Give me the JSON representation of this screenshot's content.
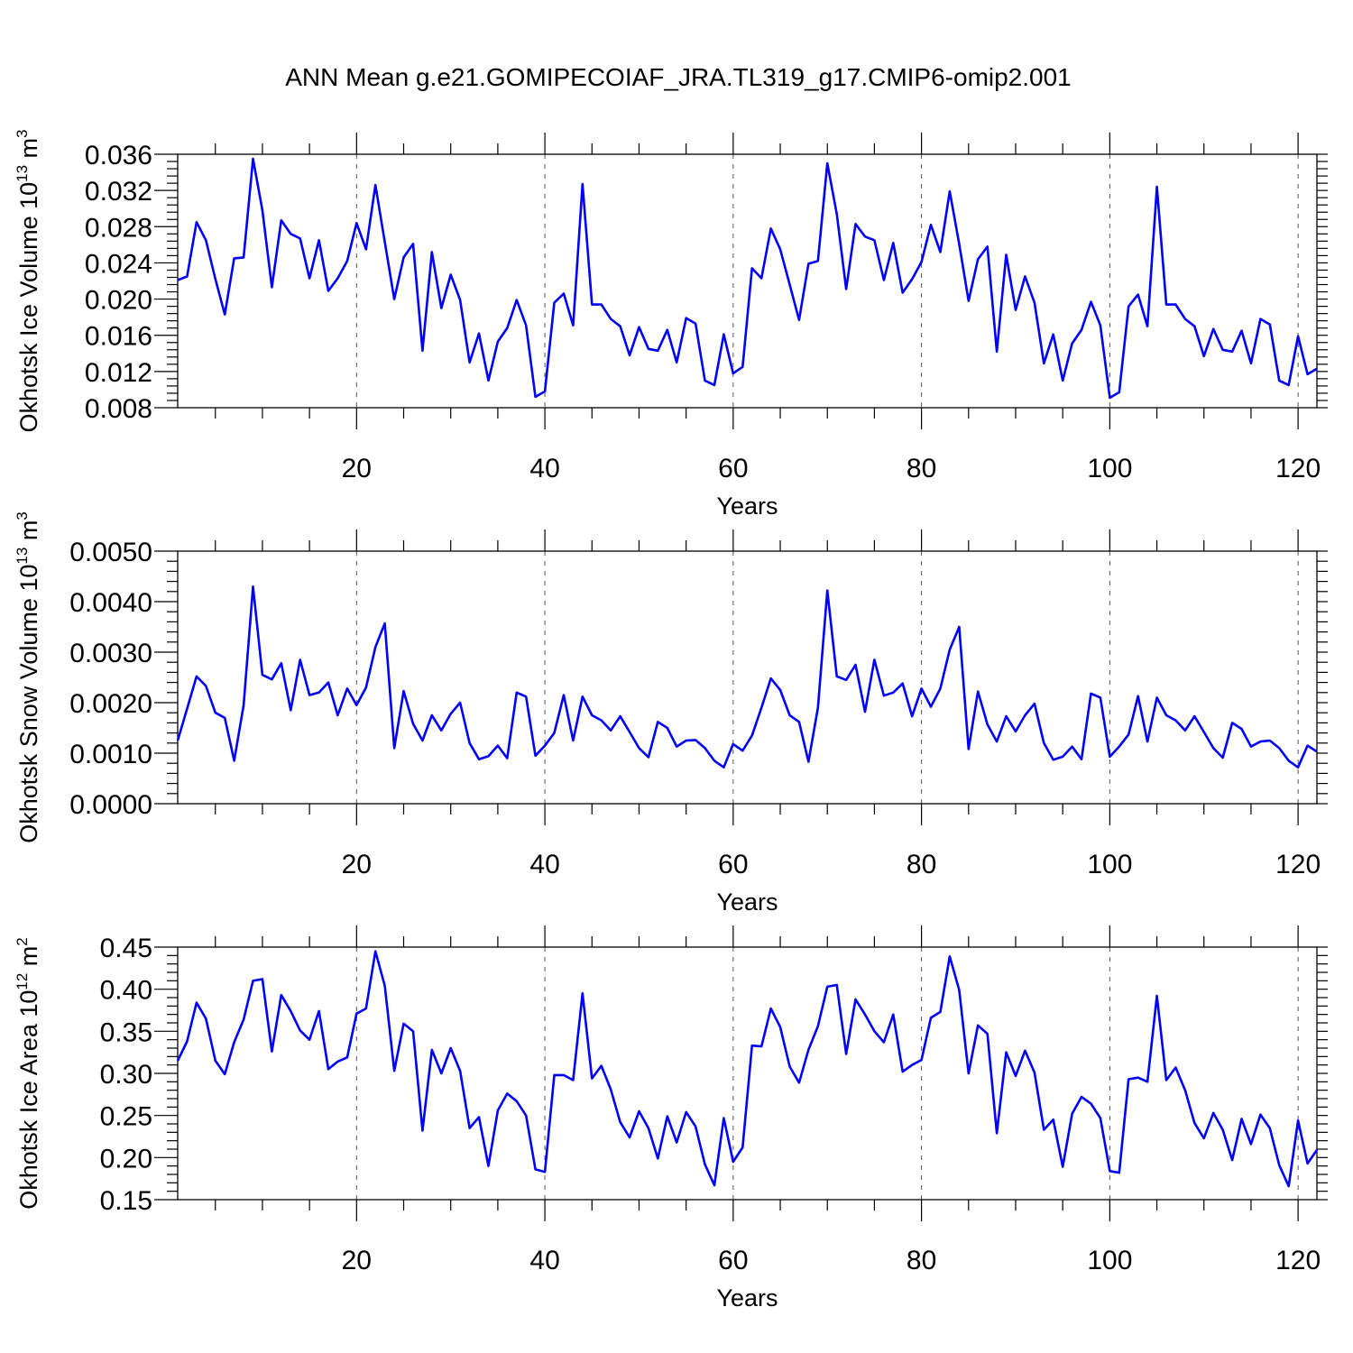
{
  "chart_data": {
    "type": "line",
    "title": "ANN Mean g.e21.GOMIPECOIAF_JRA.TL319_g17.CMIP6-omip2.001",
    "panels": [
      {
        "id": "ice-volume",
        "ylabel": "Okhotsk Ice Volume 10",
        "ylabel_exp": "13",
        "ylabel_unit": " m",
        "ylabel_unit_exp": "3",
        "xlabel": "Years",
        "xlim": [
          1,
          122
        ],
        "ylim": [
          0.008,
          0.036
        ],
        "xticks": [
          "20",
          "40",
          "60",
          "80",
          "100",
          "120"
        ],
        "yticks": [
          "0.008",
          "0.012",
          "0.016",
          "0.020",
          "0.024",
          "0.028",
          "0.032",
          "0.036"
        ],
        "color": "#0000ff",
        "values": [
          0.0221,
          0.0225,
          0.0285,
          0.0265,
          0.0222,
          0.0183,
          0.0245,
          0.0246,
          0.0355,
          0.0298,
          0.0213,
          0.0287,
          0.0272,
          0.0267,
          0.0223,
          0.0265,
          0.0209,
          0.0223,
          0.0242,
          0.0284,
          0.0255,
          0.0326,
          0.0263,
          0.02,
          0.0246,
          0.0261,
          0.0143,
          0.0252,
          0.019,
          0.0227,
          0.0199,
          0.013,
          0.0162,
          0.011,
          0.0153,
          0.0168,
          0.0199,
          0.0171,
          0.0092,
          0.0098,
          0.0196,
          0.0206,
          0.0171,
          0.0327,
          0.0194,
          0.0194,
          0.0178,
          0.017,
          0.0138,
          0.0169,
          0.0145,
          0.0143,
          0.0166,
          0.013,
          0.0179,
          0.0173,
          0.011,
          0.0105,
          0.0161,
          0.0118,
          0.0125,
          0.0234,
          0.0223,
          0.0278,
          0.0255,
          0.0216,
          0.0177,
          0.0239,
          0.0242,
          0.035,
          0.0294,
          0.0211,
          0.0283,
          0.0269,
          0.0265,
          0.0221,
          0.0262,
          0.0207,
          0.0222,
          0.0241,
          0.0282,
          0.0252,
          0.0319,
          0.0261,
          0.0198,
          0.0244,
          0.0258,
          0.0142,
          0.0249,
          0.0188,
          0.0225,
          0.0196,
          0.0129,
          0.0161,
          0.011,
          0.0151,
          0.0166,
          0.0197,
          0.0171,
          0.0091,
          0.0097,
          0.0192,
          0.0205,
          0.017,
          0.0324,
          0.0194,
          0.0194,
          0.0178,
          0.017,
          0.0137,
          0.0167,
          0.0144,
          0.0142,
          0.0165,
          0.0129,
          0.0178,
          0.0172,
          0.011,
          0.0105,
          0.0159,
          0.0117,
          0.0123
        ]
      },
      {
        "id": "snow-volume",
        "ylabel": "Okhotsk Snow Volume 10",
        "ylabel_exp": "13",
        "ylabel_unit": " m",
        "ylabel_unit_exp": "3",
        "xlabel": "Years",
        "xlim": [
          1,
          122
        ],
        "ylim": [
          0.0,
          0.005
        ],
        "xticks": [
          "20",
          "40",
          "60",
          "80",
          "100",
          "120"
        ],
        "yticks": [
          "0.0000",
          "0.0010",
          "0.0020",
          "0.0030",
          "0.0040",
          "0.0050"
        ],
        "color": "#0000ff",
        "values": [
          0.00125,
          0.00188,
          0.00252,
          0.00233,
          0.0018,
          0.0017,
          0.00085,
          0.00195,
          0.0043,
          0.00255,
          0.00246,
          0.00278,
          0.00185,
          0.00285,
          0.00215,
          0.0022,
          0.0024,
          0.00175,
          0.00228,
          0.00195,
          0.0023,
          0.0031,
          0.00357,
          0.0011,
          0.00223,
          0.00158,
          0.00125,
          0.00175,
          0.00145,
          0.00178,
          0.002,
          0.0012,
          0.00088,
          0.00094,
          0.00115,
          0.0009,
          0.0022,
          0.00212,
          0.00095,
          0.00115,
          0.0014,
          0.00215,
          0.00125,
          0.00212,
          0.00175,
          0.00165,
          0.00145,
          0.00173,
          0.00142,
          0.0011,
          0.00092,
          0.00162,
          0.0015,
          0.00113,
          0.00125,
          0.00126,
          0.0011,
          0.00085,
          0.00072,
          0.00118,
          0.00105,
          0.00135,
          0.0019,
          0.00248,
          0.00225,
          0.00175,
          0.00162,
          0.00083,
          0.0019,
          0.00422,
          0.00252,
          0.00245,
          0.00275,
          0.00182,
          0.00285,
          0.00214,
          0.0022,
          0.00238,
          0.00173,
          0.00228,
          0.00192,
          0.00228,
          0.00305,
          0.0035,
          0.00108,
          0.00222,
          0.00157,
          0.00123,
          0.00173,
          0.00143,
          0.00175,
          0.00198,
          0.0012,
          0.00087,
          0.00093,
          0.00113,
          0.00088,
          0.00218,
          0.0021,
          0.00093,
          0.00113,
          0.00137,
          0.00213,
          0.00123,
          0.0021,
          0.00175,
          0.00165,
          0.00145,
          0.00173,
          0.00142,
          0.0011,
          0.00091,
          0.0016,
          0.00148,
          0.00113,
          0.00123,
          0.00125,
          0.0011,
          0.00085,
          0.00072,
          0.00115,
          0.00103
        ]
      },
      {
        "id": "ice-area",
        "ylabel": "Okhotsk Ice Area 10",
        "ylabel_exp": "12",
        "ylabel_unit": " m",
        "ylabel_unit_exp": "2",
        "xlabel": "Years",
        "xlim": [
          1,
          122
        ],
        "ylim": [
          0.15,
          0.45
        ],
        "xticks": [
          "20",
          "40",
          "60",
          "80",
          "100",
          "120"
        ],
        "yticks": [
          "0.15",
          "0.20",
          "0.25",
          "0.30",
          "0.35",
          "0.40",
          "0.45"
        ],
        "color": "#0000ff",
        "values": [
          0.315,
          0.338,
          0.384,
          0.365,
          0.315,
          0.299,
          0.337,
          0.364,
          0.41,
          0.412,
          0.326,
          0.393,
          0.374,
          0.351,
          0.34,
          0.374,
          0.305,
          0.314,
          0.319,
          0.371,
          0.377,
          0.445,
          0.404,
          0.303,
          0.359,
          0.35,
          0.232,
          0.328,
          0.3,
          0.33,
          0.303,
          0.235,
          0.248,
          0.19,
          0.256,
          0.276,
          0.267,
          0.25,
          0.186,
          0.183,
          0.298,
          0.298,
          0.292,
          0.395,
          0.294,
          0.309,
          0.281,
          0.242,
          0.224,
          0.255,
          0.235,
          0.199,
          0.249,
          0.218,
          0.254,
          0.237,
          0.192,
          0.167,
          0.247,
          0.195,
          0.212,
          0.333,
          0.332,
          0.377,
          0.355,
          0.308,
          0.289,
          0.328,
          0.356,
          0.403,
          0.405,
          0.323,
          0.388,
          0.37,
          0.35,
          0.337,
          0.37,
          0.302,
          0.31,
          0.316,
          0.366,
          0.373,
          0.439,
          0.399,
          0.3,
          0.357,
          0.347,
          0.229,
          0.325,
          0.297,
          0.327,
          0.301,
          0.233,
          0.245,
          0.189,
          0.252,
          0.272,
          0.264,
          0.247,
          0.184,
          0.182,
          0.293,
          0.295,
          0.29,
          0.392,
          0.292,
          0.307,
          0.28,
          0.241,
          0.223,
          0.253,
          0.233,
          0.197,
          0.246,
          0.216,
          0.251,
          0.235,
          0.191,
          0.166,
          0.244,
          0.193,
          0.209
        ]
      }
    ]
  }
}
